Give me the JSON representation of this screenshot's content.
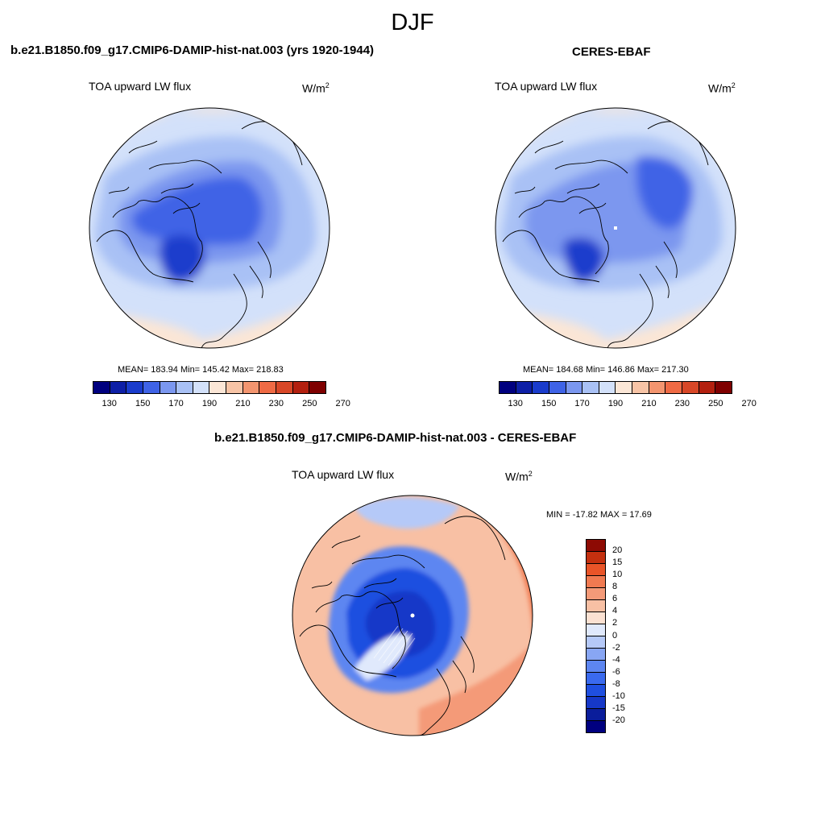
{
  "season": "DJF",
  "colors": {
    "abs_scale": [
      "#00007f",
      "#0d1fa6",
      "#1a3ccc",
      "#3f63e6",
      "#7b97ef",
      "#a9c1f5",
      "#d3e1fa",
      "#fbe6d6",
      "#f7c4a6",
      "#f3956f",
      "#ef6a44",
      "#d84727",
      "#b3200f",
      "#7f0000"
    ],
    "diff_scale": [
      "#00007f",
      "#0a1d9b",
      "#1638c8",
      "#1f4fe0",
      "#3a6aee",
      "#5d86f1",
      "#88a6f4",
      "#b5c9f8",
      "#e0e9fc",
      "#fbe1d2",
      "#f8c0a4",
      "#f49a78",
      "#f07a51",
      "#e95428",
      "#c4300f",
      "#8d0a03"
    ]
  },
  "panels": {
    "model": {
      "title": "b.e21.B1850.f09_g17.CMIP6-DAMIP-hist-nat.003 (yrs 1920-1944)",
      "field": "TOA upward LW flux",
      "units": "W/m",
      "units_exp": "2",
      "stats": "MEAN= 183.94  Min= 145.42  Max= 218.83"
    },
    "obs": {
      "title": "CERES-EBAF",
      "field": "TOA upward LW flux",
      "units": "W/m",
      "units_exp": "2",
      "stats": "MEAN= 184.68  Min= 146.86  Max= 217.30"
    },
    "diff": {
      "title": "b.e21.B1850.f09_g17.CMIP6-DAMIP-hist-nat.003 - CERES-EBAF",
      "field": "TOA upward LW flux",
      "units": "W/m",
      "units_exp": "2",
      "stats": "MIN = -17.82 MAX =  17.69"
    }
  },
  "abs_ticks": [
    "130",
    "150",
    "170",
    "190",
    "210",
    "230",
    "250",
    "270"
  ],
  "diff_ticks": [
    "20",
    "15",
    "10",
    "8",
    "6",
    "4",
    "2",
    "0",
    "-2",
    "-4",
    "-6",
    "-8",
    "-10",
    "-15",
    "-20"
  ]
}
